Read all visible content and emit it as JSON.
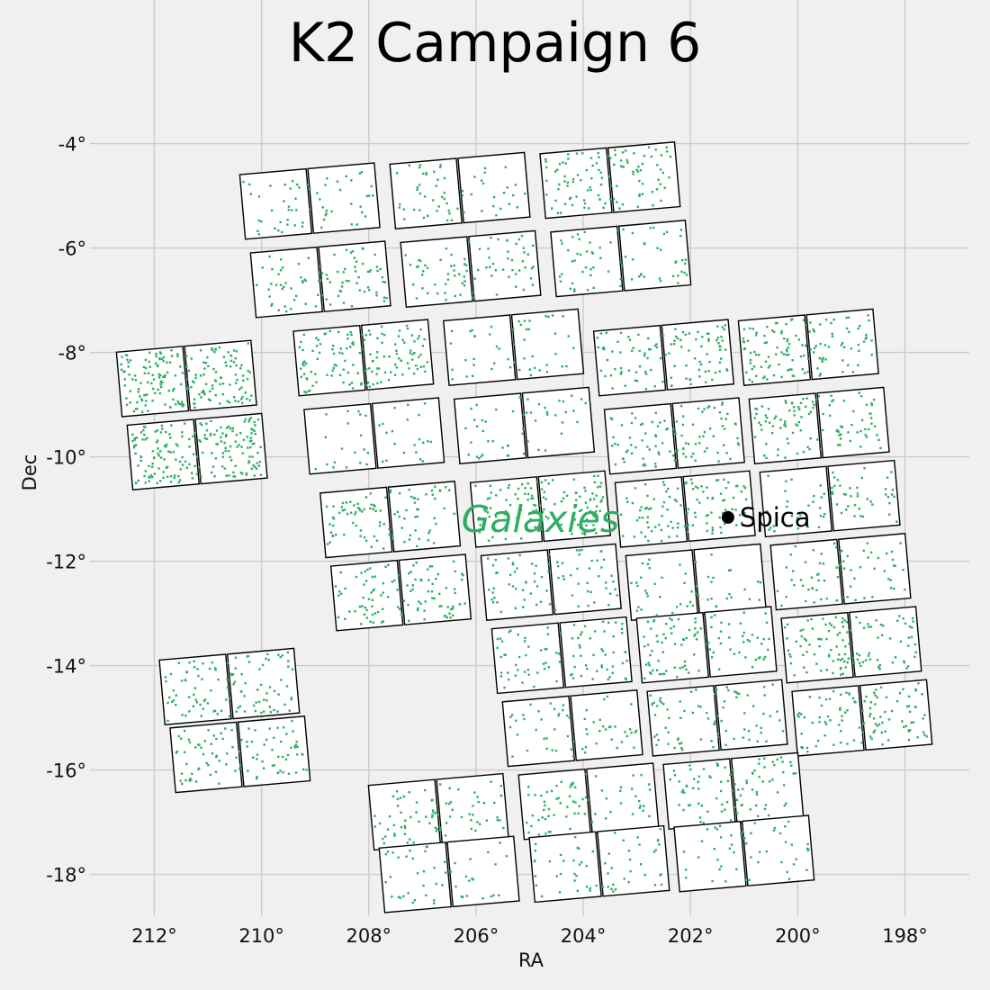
{
  "chart_data": {
    "type": "scatter",
    "title": "K2 Campaign 6",
    "xlabel": "RA",
    "ylabel": "Dec",
    "xlim": [
      213.2,
      196.8
    ],
    "ylim": [
      -18.8,
      -2.8
    ],
    "x_ticks": [
      212,
      210,
      208,
      206,
      204,
      202,
      200,
      198
    ],
    "x_tick_labels": [
      "212°",
      "210°",
      "208°",
      "206°",
      "204°",
      "202°",
      "200°",
      "198°"
    ],
    "y_ticks": [
      -4,
      -6,
      -8,
      -10,
      -12,
      -14,
      -16,
      -18
    ],
    "y_tick_labels": [
      "-4°",
      "-6°",
      "-8°",
      "-10°",
      "-12°",
      "-14°",
      "-16°",
      "-18°"
    ],
    "grid": true,
    "point_color": "#2eae62",
    "annotations": [
      {
        "label": "Spica",
        "ra": 201.3,
        "dec": -11.16,
        "color": "#000000",
        "marker": "dot"
      },
      {
        "label": "Galaxies",
        "ra": 204.8,
        "dec": -11.2,
        "color": "#2eae62",
        "style": "italic"
      }
    ],
    "modules": [
      {
        "id": "m01",
        "ra": 209.1,
        "dec": -5.1,
        "density": 60
      },
      {
        "id": "m02",
        "ra": 206.3,
        "dec": -4.9,
        "density": 60
      },
      {
        "id": "m03",
        "ra": 203.5,
        "dec": -4.7,
        "density": 110
      },
      {
        "id": "m04",
        "ra": 208.9,
        "dec": -6.6,
        "density": 90
      },
      {
        "id": "m05",
        "ra": 206.1,
        "dec": -6.4,
        "density": 80
      },
      {
        "id": "m06",
        "ra": 203.3,
        "dec": -6.2,
        "density": 70
      },
      {
        "id": "m07",
        "ra": 211.4,
        "dec": -8.5,
        "density": 200
      },
      {
        "id": "m08",
        "ra": 208.1,
        "dec": -8.1,
        "density": 140
      },
      {
        "id": "m09",
        "ra": 205.3,
        "dec": -7.9,
        "density": 50
      },
      {
        "id": "m10",
        "ra": 202.5,
        "dec": -8.1,
        "density": 110
      },
      {
        "id": "m11",
        "ra": 199.8,
        "dec": -7.9,
        "density": 130
      },
      {
        "id": "m12",
        "ra": 211.2,
        "dec": -9.9,
        "density": 200
      },
      {
        "id": "m13",
        "ra": 207.9,
        "dec": -9.6,
        "density": 40
      },
      {
        "id": "m14",
        "ra": 205.1,
        "dec": -9.4,
        "density": 50
      },
      {
        "id": "m15",
        "ra": 202.3,
        "dec": -9.6,
        "density": 100
      },
      {
        "id": "m16",
        "ra": 199.6,
        "dec": -9.4,
        "density": 110
      },
      {
        "id": "m17",
        "ra": 207.6,
        "dec": -11.2,
        "density": 100
      },
      {
        "id": "m18",
        "ra": 204.8,
        "dec": -11.0,
        "density": 120
      },
      {
        "id": "m19",
        "ra": 202.1,
        "dec": -11.0,
        "density": 110
      },
      {
        "id": "m20",
        "ra": 199.4,
        "dec": -10.8,
        "density": 70
      },
      {
        "id": "m21",
        "ra": 207.4,
        "dec": -12.6,
        "density": 110
      },
      {
        "id": "m22",
        "ra": 204.6,
        "dec": -12.4,
        "density": 80
      },
      {
        "id": "m23",
        "ra": 201.9,
        "dec": -12.4,
        "density": 50
      },
      {
        "id": "m24",
        "ra": 199.2,
        "dec": -12.2,
        "density": 70
      },
      {
        "id": "m25",
        "ra": 204.4,
        "dec": -13.8,
        "density": 90
      },
      {
        "id": "m26",
        "ra": 201.7,
        "dec": -13.6,
        "density": 100
      },
      {
        "id": "m27",
        "ra": 199.0,
        "dec": -13.6,
        "density": 120
      },
      {
        "id": "m28",
        "ra": 210.6,
        "dec": -14.4,
        "density": 110
      },
      {
        "id": "m29",
        "ra": 204.2,
        "dec": -15.2,
        "density": 60
      },
      {
        "id": "m30",
        "ra": 201.5,
        "dec": -15.0,
        "density": 80
      },
      {
        "id": "m31",
        "ra": 198.8,
        "dec": -15.0,
        "density": 110
      },
      {
        "id": "m32",
        "ra": 210.4,
        "dec": -15.7,
        "density": 100
      },
      {
        "id": "m33",
        "ra": 206.7,
        "dec": -16.8,
        "density": 80
      },
      {
        "id": "m34",
        "ra": 203.9,
        "dec": -16.6,
        "density": 70
      },
      {
        "id": "m35",
        "ra": 201.2,
        "dec": -16.4,
        "density": 90
      },
      {
        "id": "m36",
        "ra": 206.5,
        "dec": -18.0,
        "density": 50
      },
      {
        "id": "m37",
        "ra": 203.7,
        "dec": -17.8,
        "density": 60
      },
      {
        "id": "m38",
        "ra": 201.0,
        "dec": -17.6,
        "density": 50
      }
    ]
  }
}
